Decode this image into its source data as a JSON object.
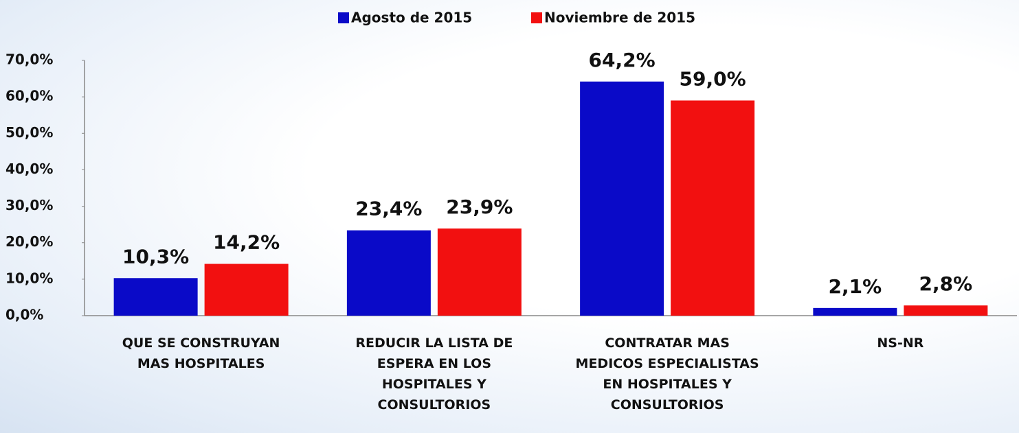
{
  "chart_data": {
    "type": "bar",
    "categories": [
      "QUE SE  CONSTRUYAN\nMAS HOSPITALES",
      "REDUCIR LA LISTA DE\nESPERA EN LOS\nHOSPITALES Y\nCONSULTORIOS",
      "CONTRATAR MAS\nMEDICOS ESPECIALISTAS\nEN HOSPITALES Y\nCONSULTORIOS",
      "NS-NR"
    ],
    "series": [
      {
        "name": "Agosto de 2015",
        "color": "#0a0ac8",
        "values": [
          10.3,
          23.4,
          64.2,
          2.1
        ],
        "value_labels": [
          "10,3%",
          "23,4%",
          "64,2%",
          "2,1%"
        ]
      },
      {
        "name": "Noviembre de 2015",
        "color": "#f21010",
        "values": [
          14.2,
          23.9,
          59.0,
          2.8
        ],
        "value_labels": [
          "14,2%",
          "23,9%",
          "59,0%",
          "2,8%"
        ]
      }
    ],
    "ylim": [
      0,
      70
    ],
    "yticks": [
      {
        "value": 0,
        "label": "0,0%"
      },
      {
        "value": 10,
        "label": "10,0%"
      },
      {
        "value": 20,
        "label": "20,0%"
      },
      {
        "value": 30,
        "label": "30,0%"
      },
      {
        "value": 40,
        "label": "40,0%"
      },
      {
        "value": 50,
        "label": "50,0%"
      },
      {
        "value": 60,
        "label": "60,0%"
      },
      {
        "value": 70,
        "label": "70,0%"
      }
    ],
    "legend": "top"
  }
}
